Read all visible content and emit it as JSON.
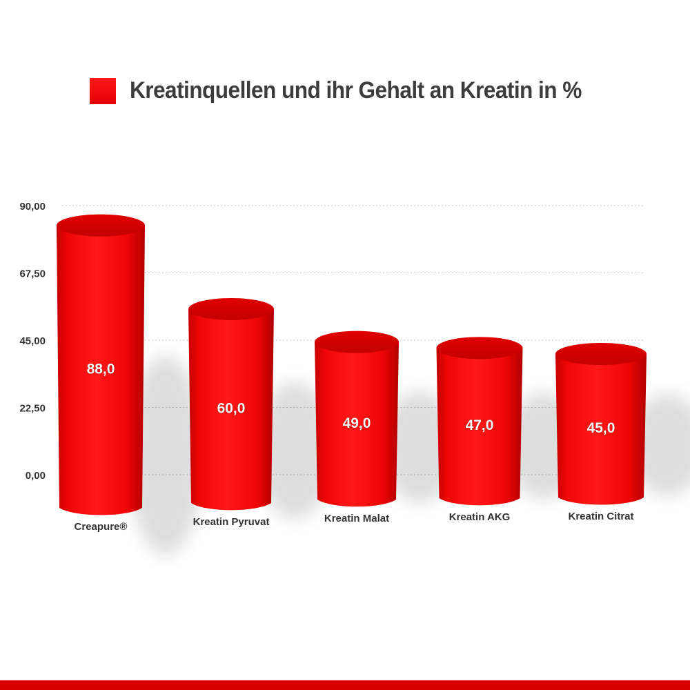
{
  "colors": {
    "bar": "#ff0c0c",
    "bar_dark": "#c80000",
    "bottom_bar": "#d90000",
    "axis_text": "#333333",
    "grid": "#c8c8c8"
  },
  "chart_data": {
    "type": "bar",
    "title": "",
    "legend": {
      "placement": "top",
      "entries": [
        "Kreatinquellen und ihr Gehalt an Kreatin in %"
      ]
    },
    "categories": [
      "Creapure®",
      "Kreatin Pyruvat",
      "Kreatin Malat",
      "Kreatin AKG",
      "Kreatin Citrat"
    ],
    "series": [
      {
        "name": "Kreatinquellen und ihr Gehalt an Kreatin in %",
        "values": [
          88.0,
          60.0,
          49.0,
          47.0,
          45.0
        ],
        "data_labels": [
          "88,0",
          "60,0",
          "49,0",
          "47,0",
          "45,0"
        ]
      }
    ],
    "yticks": [
      0,
      22.5,
      45,
      67.5,
      90
    ],
    "ytick_labels": [
      "0,00",
      "22,50",
      "45,00",
      "67,50",
      "90,00"
    ],
    "ylim": [
      0,
      90
    ],
    "grid": true,
    "bar_style": "3d-cylinder"
  }
}
